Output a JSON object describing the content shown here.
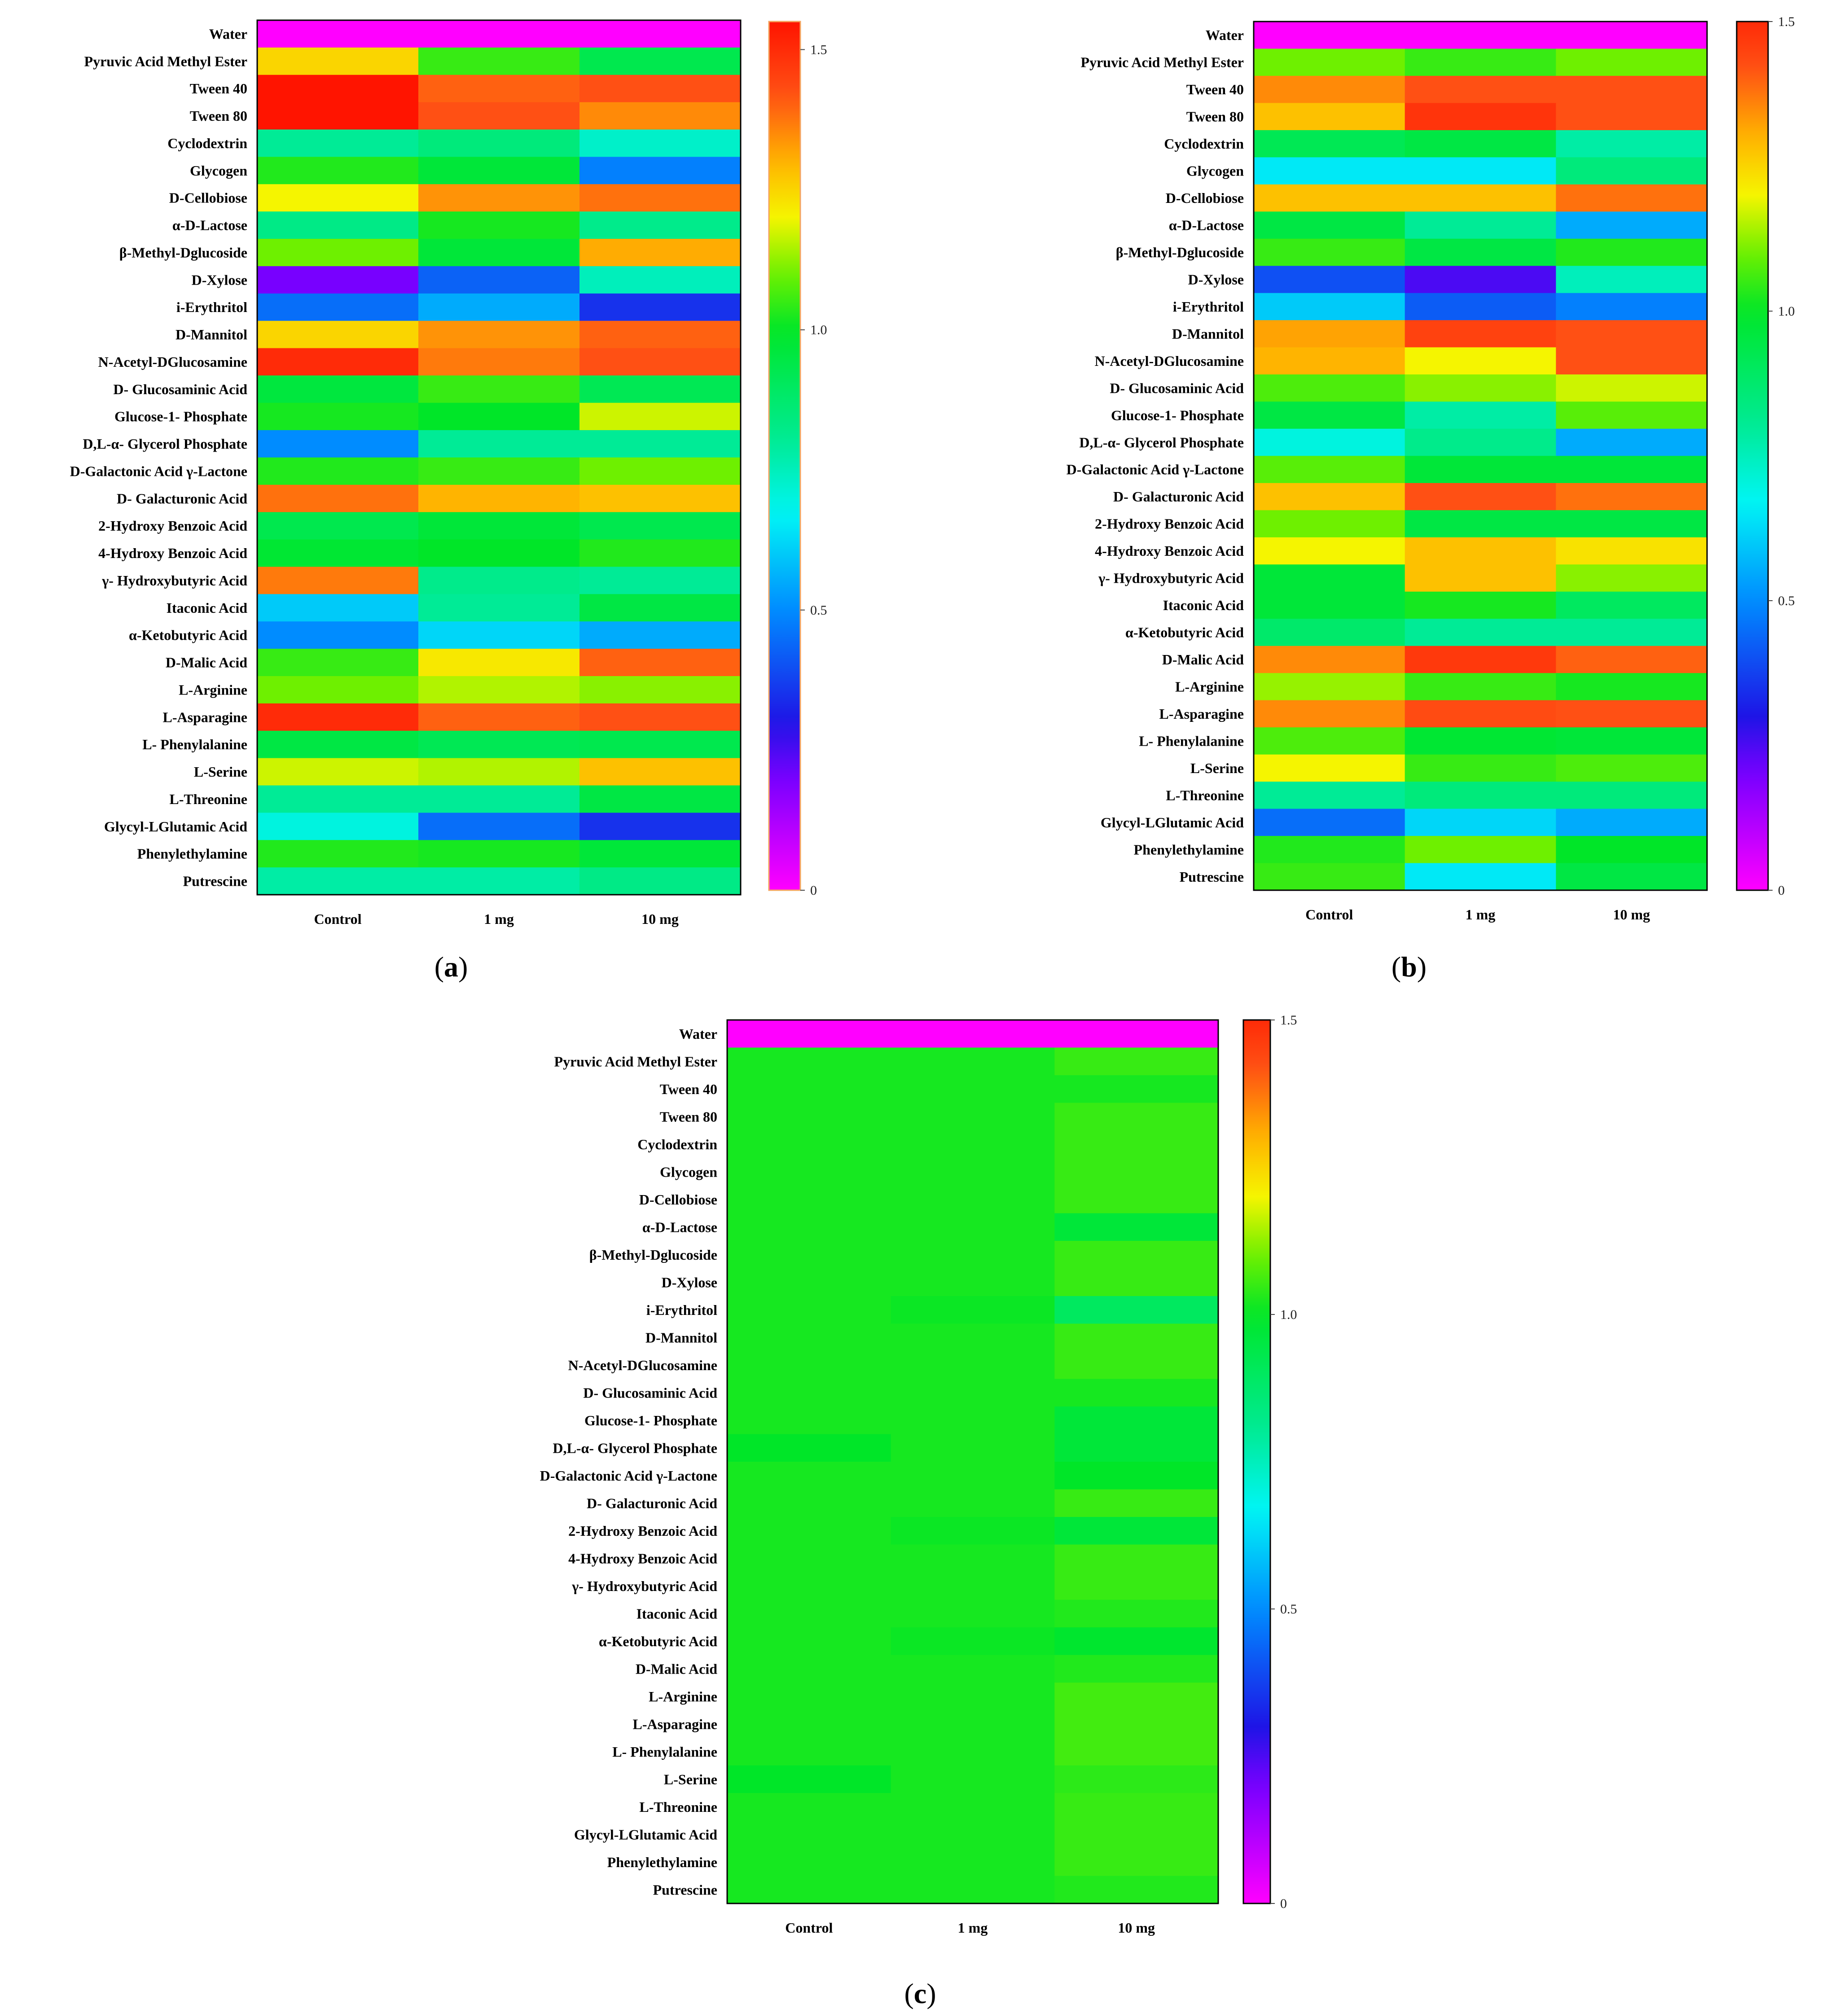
{
  "chart_data": [
    {
      "type": "heatmap",
      "panel": "(a)",
      "tag_letter": "a",
      "columns": [
        "Control",
        "1 mg",
        "10 mg"
      ],
      "rows": [
        "Water",
        "Pyruvic Acid Methyl Ester",
        "Tween 40",
        "Tween 80",
        "Cyclodextrin",
        "Glycogen",
        "D-Cellobiose",
        "α-D-Lactose",
        "β-Methyl-Dglucoside",
        "D-Xylose",
        "i-Erythritol",
        "D-Mannitol",
        "N-Acetyl-DGlucosamine",
        "D- Glucosaminic Acid",
        "Glucose-1- Phosphate",
        "D,L-α- Glycerol Phosphate",
        "D-Galactonic Acid γ-Lactone",
        "D- Galacturonic Acid",
        "2-Hydroxy Benzoic Acid",
        "4-Hydroxy Benzoic Acid",
        "γ- Hydroxybutyric Acid",
        "Itaconic Acid",
        "α-Ketobutyric Acid",
        "D-Malic Acid",
        "L-Arginine",
        "L-Asparagine",
        "L- Phenylalanine",
        "L-Serine",
        "L-Threonine",
        "Glycyl-LGlutamic Acid",
        "Phenylethylamine",
        "Putrescine"
      ],
      "values": [
        [
          0.0,
          0.0,
          0.0
        ],
        [
          1.25,
          1.05,
          0.93
        ],
        [
          1.55,
          1.4,
          1.42
        ],
        [
          1.55,
          1.42,
          1.35
        ],
        [
          0.8,
          0.85,
          0.73
        ],
        [
          1.03,
          0.97,
          0.48
        ],
        [
          1.2,
          1.34,
          1.38
        ],
        [
          0.83,
          1.02,
          0.82
        ],
        [
          1.1,
          0.97,
          1.31
        ],
        [
          0.2,
          0.43,
          0.75
        ],
        [
          0.45,
          0.55,
          0.35
        ],
        [
          1.25,
          1.34,
          1.4
        ],
        [
          1.5,
          1.37,
          1.42
        ],
        [
          0.96,
          1.05,
          0.92
        ],
        [
          1.02,
          1.0,
          1.17
        ],
        [
          0.5,
          0.8,
          0.8
        ],
        [
          1.03,
          1.05,
          1.1
        ],
        [
          1.38,
          1.3,
          1.28
        ],
        [
          0.93,
          0.97,
          0.93
        ],
        [
          0.98,
          1.0,
          1.03
        ],
        [
          1.37,
          0.82,
          0.8
        ],
        [
          0.6,
          0.8,
          0.95
        ],
        [
          0.5,
          0.62,
          0.55
        ],
        [
          1.05,
          1.22,
          1.4
        ],
        [
          1.1,
          1.15,
          1.12
        ],
        [
          1.5,
          1.4,
          1.42
        ],
        [
          0.95,
          0.92,
          0.93
        ],
        [
          1.17,
          1.15,
          1.28
        ],
        [
          0.8,
          0.8,
          0.95
        ],
        [
          0.7,
          0.45,
          0.35
        ],
        [
          1.03,
          1.02,
          0.97
        ],
        [
          0.78,
          0.78,
          0.83
        ]
      ],
      "colorbar": {
        "min": 0,
        "max": 1.55,
        "ticks": [
          0,
          0.5,
          1.0,
          1.5
        ],
        "tick_labels": [
          "0",
          "0.5",
          "1.0",
          "1.5"
        ],
        "border": "#f4a460"
      }
    },
    {
      "type": "heatmap",
      "panel": "(b)",
      "tag_letter": "b",
      "columns": [
        "Control",
        "1 mg",
        "10 mg"
      ],
      "rows": [
        "Water",
        "Pyruvic Acid Methyl Ester",
        "Tween 40",
        "Tween 80",
        "Cyclodextrin",
        "Glycogen",
        "D-Cellobiose",
        "α-D-Lactose",
        "β-Methyl-Dglucoside",
        "D-Xylose",
        "i-Erythritol",
        "D-Mannitol",
        "N-Acetyl-DGlucosamine",
        "D- Glucosaminic Acid",
        "Glucose-1- Phosphate",
        "D,L-α- Glycerol Phosphate",
        "D-Galactonic Acid γ-Lactone",
        "D- Galacturonic Acid",
        "2-Hydroxy Benzoic Acid",
        "4-Hydroxy Benzoic Acid",
        "γ- Hydroxybutyric Acid",
        "Itaconic Acid",
        "α-Ketobutyric Acid",
        "D-Malic Acid",
        "L-Arginine",
        "L-Asparagine",
        "L- Phenylalanine",
        "L-Serine",
        "L-Threonine",
        "Glycyl-LGlutamic Acid",
        "Phenylethylamine",
        "Putrescine"
      ],
      "values": [
        [
          0.0,
          0.0,
          0.0
        ],
        [
          1.1,
          1.05,
          1.1
        ],
        [
          1.35,
          1.42,
          1.42
        ],
        [
          1.28,
          1.48,
          1.42
        ],
        [
          0.92,
          0.95,
          0.78
        ],
        [
          0.65,
          0.65,
          0.85
        ],
        [
          1.28,
          1.28,
          1.38
        ],
        [
          0.95,
          0.8,
          0.55
        ],
        [
          1.05,
          0.95,
          1.03
        ],
        [
          0.4,
          0.25,
          0.75
        ],
        [
          0.6,
          0.42,
          0.48
        ],
        [
          1.32,
          1.45,
          1.42
        ],
        [
          1.3,
          1.2,
          1.42
        ],
        [
          1.07,
          1.12,
          1.17
        ],
        [
          0.95,
          0.78,
          1.08
        ],
        [
          0.7,
          0.82,
          0.55
        ],
        [
          1.08,
          0.97,
          0.97
        ],
        [
          1.28,
          1.42,
          1.38
        ],
        [
          1.1,
          0.95,
          0.95
        ],
        [
          1.2,
          1.28,
          1.23
        ],
        [
          0.97,
          1.28,
          1.12
        ],
        [
          0.97,
          1.02,
          0.9
        ],
        [
          0.88,
          0.8,
          0.8
        ],
        [
          1.35,
          1.47,
          1.4
        ],
        [
          1.13,
          1.05,
          1.02
        ],
        [
          1.35,
          1.43,
          1.42
        ],
        [
          1.07,
          0.98,
          0.97
        ],
        [
          1.2,
          1.05,
          1.07
        ],
        [
          0.8,
          0.85,
          0.85
        ],
        [
          0.45,
          0.62,
          0.55
        ],
        [
          1.03,
          1.1,
          1.0
        ],
        [
          1.05,
          0.65,
          0.95
        ]
      ],
      "colorbar": {
        "min": 0,
        "max": 1.5,
        "ticks": [
          0,
          0.5,
          1.0,
          1.5
        ],
        "tick_labels": [
          "0",
          "0.5",
          "1.0",
          "1.5"
        ],
        "border": "#000000"
      }
    },
    {
      "type": "heatmap",
      "panel": "(c)",
      "tag_letter": "c",
      "columns": [
        "Control",
        "1 mg",
        "10 mg"
      ],
      "rows": [
        "Water",
        "Pyruvic Acid Methyl Ester",
        "Tween 40",
        "Tween 80",
        "Cyclodextrin",
        "Glycogen",
        "D-Cellobiose",
        "α-D-Lactose",
        "β-Methyl-Dglucoside",
        "D-Xylose",
        "i-Erythritol",
        "D-Mannitol",
        "N-Acetyl-DGlucosamine",
        "D- Glucosaminic Acid",
        "Glucose-1- Phosphate",
        "D,L-α- Glycerol Phosphate",
        "D-Galactonic Acid γ-Lactone",
        "D- Galacturonic Acid",
        "2-Hydroxy Benzoic Acid",
        "4-Hydroxy Benzoic Acid",
        "γ- Hydroxybutyric Acid",
        "Itaconic Acid",
        "α-Ketobutyric Acid",
        "D-Malic Acid",
        "L-Arginine",
        "L-Asparagine",
        "L- Phenylalanine",
        "L-Serine",
        "L-Threonine",
        "Glycyl-LGlutamic Acid",
        "Phenylethylamine",
        "Putrescine"
      ],
      "values": [
        [
          0.0,
          0.0,
          0.0
        ],
        [
          1.02,
          1.02,
          1.05
        ],
        [
          1.02,
          1.02,
          1.02
        ],
        [
          1.02,
          1.02,
          1.05
        ],
        [
          1.02,
          1.02,
          1.05
        ],
        [
          1.02,
          1.02,
          1.05
        ],
        [
          1.02,
          1.02,
          1.05
        ],
        [
          1.02,
          1.02,
          0.97
        ],
        [
          1.02,
          1.02,
          1.05
        ],
        [
          1.02,
          1.02,
          1.05
        ],
        [
          1.02,
          1.01,
          0.9
        ],
        [
          1.02,
          1.02,
          1.05
        ],
        [
          1.02,
          1.02,
          1.05
        ],
        [
          1.02,
          1.02,
          1.02
        ],
        [
          1.02,
          1.02,
          0.97
        ],
        [
          1.0,
          1.02,
          0.97
        ],
        [
          1.02,
          1.02,
          1.0
        ],
        [
          1.02,
          1.02,
          1.05
        ],
        [
          1.02,
          1.01,
          0.97
        ],
        [
          1.02,
          1.02,
          1.05
        ],
        [
          1.02,
          1.02,
          1.05
        ],
        [
          1.02,
          1.02,
          1.03
        ],
        [
          1.02,
          1.01,
          0.99
        ],
        [
          1.02,
          1.02,
          1.03
        ],
        [
          1.02,
          1.02,
          1.06
        ],
        [
          1.02,
          1.02,
          1.06
        ],
        [
          1.02,
          1.02,
          1.06
        ],
        [
          1.0,
          1.02,
          1.04
        ],
        [
          1.02,
          1.02,
          1.05
        ],
        [
          1.02,
          1.02,
          1.05
        ],
        [
          1.02,
          1.02,
          1.05
        ],
        [
          1.02,
          1.02,
          1.03
        ]
      ],
      "colorbar": {
        "min": 0,
        "max": 1.5,
        "ticks": [
          0,
          0.5,
          1.0,
          1.5
        ],
        "tick_labels": [
          "0",
          "0.5",
          "1.0",
          "1.5"
        ],
        "border": "#000000"
      }
    }
  ]
}
